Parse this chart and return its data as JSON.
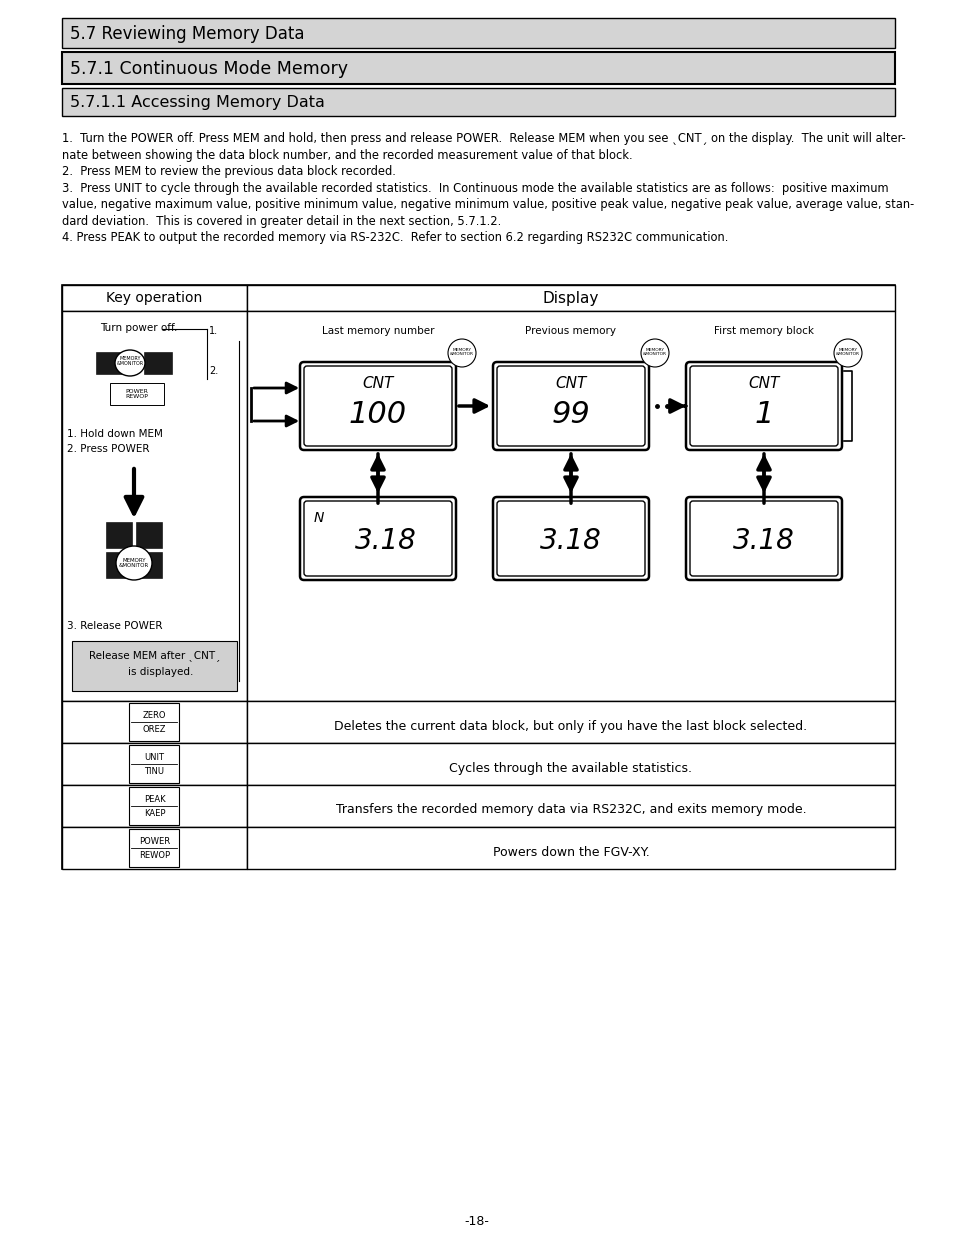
{
  "title1": "5.7 Reviewing Memory Data",
  "title2": "5.7.1 Continuous Mode Memory",
  "title3": "5.7.1.1 Accessing Memory Data",
  "key_op_header": "Key operation",
  "display_header": "Display",
  "last_memory_label": "Last memory number",
  "prev_memory_label": "Previous memory",
  "first_memory_label": "First memory block",
  "cnt_text": "CNT",
  "val1": "100",
  "val2": "99",
  "val3": "1",
  "n_label": "N",
  "meas_val": "3.18",
  "turn_power_off": "Turn power off.",
  "hold_mem": "1. Hold down MEM",
  "press_power": "2. Press POWER",
  "release_power": "3. Release POWER",
  "release_mem_line1": "Release MEM after ˎCNTˏ",
  "release_mem_line2": "    is displayed.",
  "zero_desc": "Deletes the current data block, but only if you have the last block selected.",
  "unit_desc": "Cycles through the available statistics.",
  "peak_desc": "Transfers the recorded memory data via RS232C, and exits memory mode.",
  "power_desc": "Powers down the FGV-XY.",
  "page_num": "-18-",
  "para_lines": [
    "1.  Turn the POWER off. Press MEM and hold, then press and release POWER.  Release MEM when you see ˎCNTˏ on the display.  The unit will alter-",
    "nate between showing the data block number, and the recorded measurement value of that block.",
    "2.  Press MEM to review the previous data block recorded.",
    "3.  Press UNIT to cycle through the available recorded statistics.  In Continuous mode the available statistics are as follows:  positive maximum",
    "value, negative maximum value, positive minimum value, negative minimum value, positive peak value, negative peak value, average value, stan-",
    "dard deviation.  This is covered in greater detail in the next section, 5.7.1.2.",
    "4. Press PEAK to output the recorded memory via RS-232C.  Refer to section 6.2 regarding RS232C communication."
  ]
}
